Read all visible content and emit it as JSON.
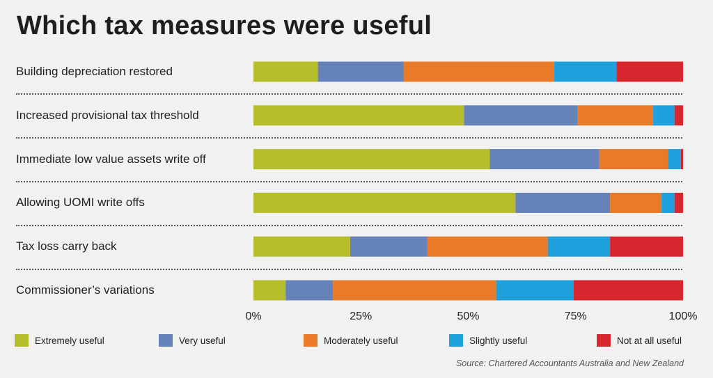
{
  "title": "Which tax measures were useful",
  "source": "Source: Chartered Accountants Australia and New Zealand",
  "colors": {
    "extremely": "#b5bd2a",
    "very": "#6683b9",
    "moderately": "#e97a2a",
    "slightly": "#1ea1dc",
    "not_at_all": "#d8262f"
  },
  "chart_data": {
    "type": "bar",
    "orientation": "horizontal",
    "stacked": true,
    "categories": [
      "Building depreciation restored",
      "Increased provisional tax threshold",
      "Immediate low value assets write off",
      "Allowing UOMI write offs",
      "Tax loss carry back",
      "Commissioner’s variations"
    ],
    "series": [
      {
        "name": "Extremely useful",
        "color": "#b5bd2a",
        "values": [
          15,
          49,
          55,
          61,
          22.5,
          7.5
        ]
      },
      {
        "name": "Very useful",
        "color": "#6683b9",
        "values": [
          20,
          26.5,
          25.5,
          22,
          18,
          11
        ]
      },
      {
        "name": "Moderately useful",
        "color": "#e97a2a",
        "values": [
          35,
          17.5,
          16,
          12,
          28,
          38
        ]
      },
      {
        "name": "Slightly useful",
        "color": "#1ea1dc",
        "values": [
          14.5,
          5,
          3,
          3,
          14.5,
          18
        ]
      },
      {
        "name": "Not at all useful",
        "color": "#d8262f",
        "values": [
          15.5,
          2,
          0.5,
          2,
          17,
          25.5
        ]
      }
    ],
    "xlim": [
      0,
      100
    ],
    "xticks": [
      "0%",
      "25%",
      "50%",
      "75%",
      "100%"
    ],
    "legend_position": "bottom",
    "grid": false
  }
}
